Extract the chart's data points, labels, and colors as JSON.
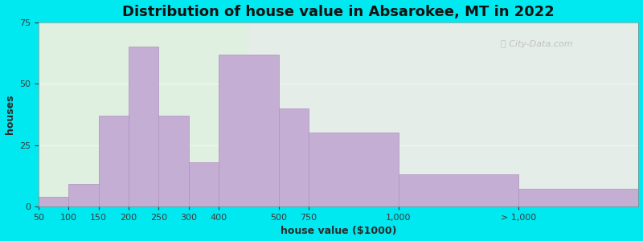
{
  "title": "Distribution of house value in Absarokee, MT in 2022",
  "xlabel": "house value ($1000)",
  "ylabel": "houses",
  "bar_color": "#c4aed4",
  "bar_edge_color": "#b090c0",
  "background_outer": "#00e8f0",
  "background_left": "#dff0e0",
  "ylim": [
    0,
    75
  ],
  "yticks": [
    0,
    25,
    50,
    75
  ],
  "bar_heights": [
    4,
    9,
    37,
    65,
    37,
    18,
    62,
    40,
    30,
    13,
    7
  ],
  "bar_widths": [
    1,
    1,
    1,
    1,
    1,
    1,
    2,
    1,
    3,
    4,
    4
  ],
  "xtick_labels": [
    "50",
    "100",
    "150",
    "200",
    "250",
    "300",
    "400",
    "500",
    "750",
    "1,000",
    "> 1,000"
  ],
  "xtick_pos": [
    0,
    1,
    2,
    3,
    4,
    5,
    6,
    7,
    8,
    9,
    10
  ],
  "title_fontsize": 13,
  "label_fontsize": 9,
  "tick_fontsize": 8
}
